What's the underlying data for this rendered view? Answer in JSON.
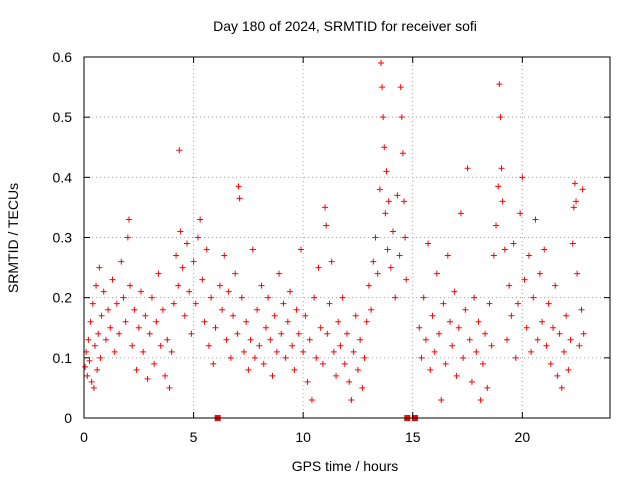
{
  "chart_data": {
    "type": "scatter",
    "title": "Day 180 of 2024, SRMTID for receiver sofi",
    "xlabel": "GPS time / hours",
    "ylabel": "SRMTID / TECUs",
    "xlim": [
      0,
      24
    ],
    "ylim": [
      0,
      0.6
    ],
    "x_ticks": [
      0,
      5,
      10,
      15,
      20
    ],
    "y_ticks": [
      0,
      0.1,
      0.2,
      0.3,
      0.4,
      0.5,
      0.6
    ],
    "x_tick_labels": [
      "0",
      "5",
      "10",
      "15",
      "20"
    ],
    "y_tick_labels": [
      "0",
      "0.1",
      "0.2",
      "0.3",
      "0.4",
      "0.5",
      "0.6"
    ],
    "grid": true,
    "marker": "+",
    "color": "#ff0000",
    "gap_markers_x": [
      6.1,
      14.75,
      15.1
    ],
    "series": [
      {
        "name": "SRMTID",
        "points": [
          [
            0.05,
            0.085
          ],
          [
            0.1,
            0.11
          ],
          [
            0.15,
            0.07
          ],
          [
            0.2,
            0.13
          ],
          [
            0.25,
            0.095
          ],
          [
            0.3,
            0.16
          ],
          [
            0.35,
            0.06
          ],
          [
            0.4,
            0.19
          ],
          [
            0.45,
            0.05
          ],
          [
            0.5,
            0.12
          ],
          [
            0.55,
            0.22
          ],
          [
            0.6,
            0.08
          ],
          [
            0.65,
            0.14
          ],
          [
            0.7,
            0.25
          ],
          [
            0.75,
            0.1
          ],
          [
            0.8,
            0.17
          ],
          [
            0.9,
            0.21
          ],
          [
            1.0,
            0.13
          ],
          [
            1.1,
            0.18
          ],
          [
            1.2,
            0.15
          ],
          [
            1.3,
            0.23
          ],
          [
            1.4,
            0.11
          ],
          [
            1.5,
            0.19
          ],
          [
            1.6,
            0.14
          ],
          [
            1.7,
            0.26
          ],
          [
            1.8,
            0.2
          ],
          [
            1.9,
            0.16
          ],
          [
            2.0,
            0.3
          ],
          [
            2.05,
            0.33
          ],
          [
            2.1,
            0.22
          ],
          [
            2.2,
            0.12
          ],
          [
            2.3,
            0.18
          ],
          [
            2.4,
            0.08
          ],
          [
            2.5,
            0.15
          ],
          [
            2.6,
            0.21
          ],
          [
            2.7,
            0.11
          ],
          [
            2.8,
            0.17
          ],
          [
            2.9,
            0.065
          ],
          [
            3.0,
            0.14
          ],
          [
            3.1,
            0.2
          ],
          [
            3.2,
            0.09
          ],
          [
            3.3,
            0.16
          ],
          [
            3.4,
            0.24
          ],
          [
            3.5,
            0.12
          ],
          [
            3.6,
            0.18
          ],
          [
            3.7,
            0.07
          ],
          [
            3.8,
            0.13
          ],
          [
            3.9,
            0.05
          ],
          [
            4.0,
            0.11
          ],
          [
            4.1,
            0.19
          ],
          [
            4.2,
            0.27
          ],
          [
            4.3,
            0.22
          ],
          [
            4.35,
            0.445
          ],
          [
            4.4,
            0.31
          ],
          [
            4.5,
            0.25
          ],
          [
            4.6,
            0.17
          ],
          [
            4.7,
            0.29
          ],
          [
            4.8,
            0.21
          ],
          [
            4.9,
            0.14
          ],
          [
            5.0,
            0.26
          ],
          [
            5.1,
            0.19
          ],
          [
            5.2,
            0.3
          ],
          [
            5.3,
            0.33
          ],
          [
            5.4,
            0.23
          ],
          [
            5.5,
            0.16
          ],
          [
            5.6,
            0.28
          ],
          [
            5.7,
            0.12
          ],
          [
            5.8,
            0.2
          ],
          [
            5.9,
            0.09
          ],
          [
            6.0,
            0.15
          ],
          [
            6.2,
            0.22
          ],
          [
            6.3,
            0.18
          ],
          [
            6.4,
            0.27
          ],
          [
            6.5,
            0.13
          ],
          [
            6.6,
            0.21
          ],
          [
            6.7,
            0.1
          ],
          [
            6.8,
            0.17
          ],
          [
            6.9,
            0.24
          ],
          [
            7.0,
            0.14
          ],
          [
            7.05,
            0.385
          ],
          [
            7.1,
            0.365
          ],
          [
            7.2,
            0.2
          ],
          [
            7.3,
            0.11
          ],
          [
            7.4,
            0.16
          ],
          [
            7.5,
            0.08
          ],
          [
            7.6,
            0.13
          ],
          [
            7.7,
            0.28
          ],
          [
            7.8,
            0.1
          ],
          [
            7.9,
            0.18
          ],
          [
            8.0,
            0.12
          ],
          [
            8.1,
            0.22
          ],
          [
            8.2,
            0.09
          ],
          [
            8.3,
            0.15
          ],
          [
            8.4,
            0.2
          ],
          [
            8.5,
            0.13
          ],
          [
            8.6,
            0.07
          ],
          [
            8.7,
            0.17
          ],
          [
            8.8,
            0.11
          ],
          [
            8.9,
            0.24
          ],
          [
            9.0,
            0.14
          ],
          [
            9.1,
            0.19
          ],
          [
            9.2,
            0.1
          ],
          [
            9.3,
            0.16
          ],
          [
            9.4,
            0.21
          ],
          [
            9.5,
            0.12
          ],
          [
            9.6,
            0.08
          ],
          [
            9.7,
            0.18
          ],
          [
            9.8,
            0.14
          ],
          [
            9.9,
            0.28
          ],
          [
            10.0,
            0.11
          ],
          [
            10.1,
            0.17
          ],
          [
            10.2,
            0.06
          ],
          [
            10.3,
            0.13
          ],
          [
            10.4,
            0.03
          ],
          [
            10.5,
            0.2
          ],
          [
            10.6,
            0.1
          ],
          [
            10.7,
            0.25
          ],
          [
            10.8,
            0.15
          ],
          [
            10.9,
            0.09
          ],
          [
            11.0,
            0.35
          ],
          [
            11.05,
            0.32
          ],
          [
            11.1,
            0.14
          ],
          [
            11.2,
            0.19
          ],
          [
            11.3,
            0.26
          ],
          [
            11.4,
            0.11
          ],
          [
            11.5,
            0.07
          ],
          [
            11.6,
            0.16
          ],
          [
            11.7,
            0.12
          ],
          [
            11.8,
            0.2
          ],
          [
            11.9,
            0.09
          ],
          [
            12.0,
            0.14
          ],
          [
            12.1,
            0.06
          ],
          [
            12.2,
            0.03
          ],
          [
            12.3,
            0.11
          ],
          [
            12.4,
            0.17
          ],
          [
            12.5,
            0.08
          ],
          [
            12.6,
            0.13
          ],
          [
            12.7,
            0.05
          ],
          [
            12.8,
            0.1
          ],
          [
            12.9,
            0.16
          ],
          [
            13.0,
            0.22
          ],
          [
            13.1,
            0.18
          ],
          [
            13.2,
            0.26
          ],
          [
            13.3,
            0.3
          ],
          [
            13.4,
            0.24
          ],
          [
            13.5,
            0.38
          ],
          [
            13.55,
            0.59
          ],
          [
            13.6,
            0.55
          ],
          [
            13.65,
            0.5
          ],
          [
            13.7,
            0.45
          ],
          [
            13.75,
            0.34
          ],
          [
            13.8,
            0.41
          ],
          [
            13.85,
            0.28
          ],
          [
            13.9,
            0.36
          ],
          [
            14.0,
            0.25
          ],
          [
            14.1,
            0.31
          ],
          [
            14.2,
            0.2
          ],
          [
            14.3,
            0.37
          ],
          [
            14.4,
            0.27
          ],
          [
            14.45,
            0.55
          ],
          [
            14.5,
            0.5
          ],
          [
            14.55,
            0.44
          ],
          [
            14.6,
            0.36
          ],
          [
            14.65,
            0.3
          ],
          [
            14.7,
            0.23
          ],
          [
            15.3,
            0.15
          ],
          [
            15.4,
            0.1
          ],
          [
            15.5,
            0.2
          ],
          [
            15.6,
            0.13
          ],
          [
            15.7,
            0.29
          ],
          [
            15.8,
            0.08
          ],
          [
            15.9,
            0.17
          ],
          [
            16.0,
            0.11
          ],
          [
            16.1,
            0.24
          ],
          [
            16.2,
            0.14
          ],
          [
            16.3,
            0.03
          ],
          [
            16.4,
            0.19
          ],
          [
            16.5,
            0.09
          ],
          [
            16.6,
            0.27
          ],
          [
            16.7,
            0.16
          ],
          [
            16.8,
            0.12
          ],
          [
            16.9,
            0.21
          ],
          [
            17.0,
            0.07
          ],
          [
            17.1,
            0.15
          ],
          [
            17.2,
            0.34
          ],
          [
            17.3,
            0.1
          ],
          [
            17.4,
            0.18
          ],
          [
            17.5,
            0.415
          ],
          [
            17.6,
            0.13
          ],
          [
            17.7,
            0.06
          ],
          [
            17.8,
            0.2
          ],
          [
            17.9,
            0.11
          ],
          [
            18.0,
            0.16
          ],
          [
            18.1,
            0.03
          ],
          [
            18.2,
            0.09
          ],
          [
            18.3,
            0.14
          ],
          [
            18.4,
            0.05
          ],
          [
            18.5,
            0.19
          ],
          [
            18.6,
            0.12
          ],
          [
            18.7,
            0.27
          ],
          [
            18.8,
            0.32
          ],
          [
            18.9,
            0.385
          ],
          [
            18.95,
            0.555
          ],
          [
            19.0,
            0.5
          ],
          [
            19.05,
            0.415
          ],
          [
            19.1,
            0.36
          ],
          [
            19.2,
            0.28
          ],
          [
            19.3,
            0.13
          ],
          [
            19.4,
            0.22
          ],
          [
            19.5,
            0.17
          ],
          [
            19.6,
            0.29
          ],
          [
            19.7,
            0.1
          ],
          [
            19.8,
            0.19
          ],
          [
            19.9,
            0.34
          ],
          [
            20.0,
            0.4
          ],
          [
            20.1,
            0.23
          ],
          [
            20.2,
            0.15
          ],
          [
            20.3,
            0.27
          ],
          [
            20.4,
            0.11
          ],
          [
            20.5,
            0.2
          ],
          [
            20.6,
            0.33
          ],
          [
            20.7,
            0.13
          ],
          [
            20.8,
            0.24
          ],
          [
            20.9,
            0.16
          ],
          [
            21.0,
            0.28
          ],
          [
            21.1,
            0.12
          ],
          [
            21.2,
            0.19
          ],
          [
            21.3,
            0.09
          ],
          [
            21.4,
            0.15
          ],
          [
            21.5,
            0.22
          ],
          [
            21.6,
            0.07
          ],
          [
            21.7,
            0.14
          ],
          [
            21.8,
            0.05
          ],
          [
            21.9,
            0.11
          ],
          [
            22.0,
            0.17
          ],
          [
            22.1,
            0.08
          ],
          [
            22.2,
            0.13
          ],
          [
            22.3,
            0.29
          ],
          [
            22.35,
            0.35
          ],
          [
            22.4,
            0.39
          ],
          [
            22.45,
            0.36
          ],
          [
            22.5,
            0.24
          ],
          [
            22.6,
            0.12
          ],
          [
            22.7,
            0.18
          ],
          [
            22.75,
            0.38
          ],
          [
            22.8,
            0.14
          ]
        ]
      }
    ]
  }
}
